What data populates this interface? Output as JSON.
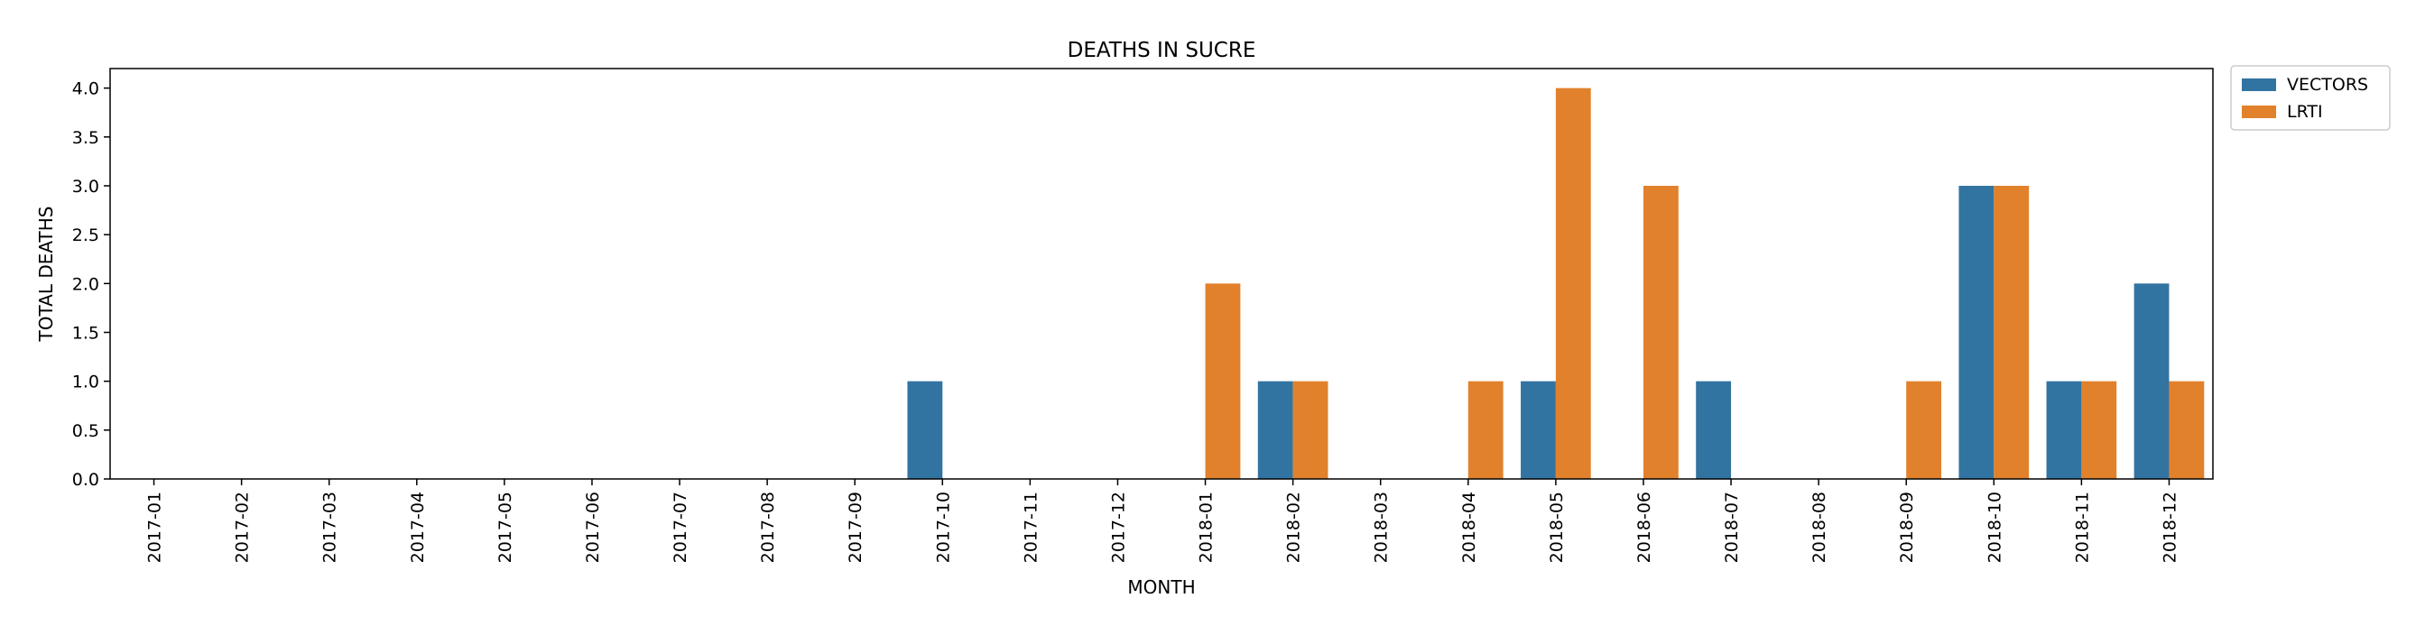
{
  "chart_data": {
    "type": "bar",
    "title": "DEATHS IN SUCRE",
    "xlabel": "MONTH",
    "ylabel": "TOTAL DEATHS",
    "ylim": [
      0,
      4.2
    ],
    "yticks": [
      "0.0",
      "0.5",
      "1.0",
      "1.5",
      "2.0",
      "2.5",
      "3.0",
      "3.5",
      "4.0"
    ],
    "legend_position": "outside-top-right",
    "categories": [
      "2017-01",
      "2017-02",
      "2017-03",
      "2017-04",
      "2017-05",
      "2017-06",
      "2017-07",
      "2017-08",
      "2017-09",
      "2017-10",
      "2017-11",
      "2017-12",
      "2018-01",
      "2018-02",
      "2018-03",
      "2018-04",
      "2018-05",
      "2018-06",
      "2018-07",
      "2018-08",
      "2018-09",
      "2018-10",
      "2018-11",
      "2018-12"
    ],
    "series": [
      {
        "name": "VECTORS",
        "color": "#3274a1",
        "values": [
          0,
          0,
          0,
          0,
          0,
          0,
          0,
          0,
          0,
          1,
          0,
          0,
          0,
          1,
          0,
          0,
          1,
          0,
          1,
          0,
          0,
          3,
          1,
          2
        ]
      },
      {
        "name": "LRTI",
        "color": "#e1812c",
        "values": [
          0,
          0,
          0,
          0,
          0,
          0,
          0,
          0,
          0,
          0,
          0,
          0,
          2,
          1,
          0,
          1,
          4,
          3,
          0,
          0,
          1,
          3,
          1,
          1
        ]
      }
    ]
  }
}
